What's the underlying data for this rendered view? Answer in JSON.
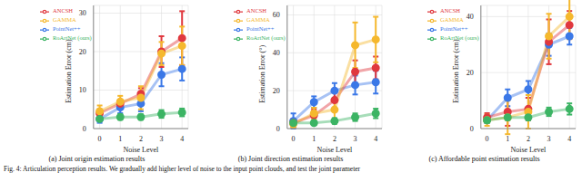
{
  "caption": "Fig. 4: Articulation perception results. We gradually add higher level of noise to the input point clouds, and test the joint parameter",
  "chart_data": [
    {
      "type": "line",
      "title": "(a) Joint origin estimation results",
      "x_label": "Noise Level",
      "y_label": "Estimation Error (cm)",
      "x": [
        0,
        1,
        2,
        3,
        4
      ],
      "xlim": [
        -0.3,
        4.3
      ],
      "xticks": [
        0,
        1,
        2,
        3,
        4
      ],
      "ylim": [
        0,
        32
      ],
      "yticks": [
        0,
        10,
        20,
        30
      ],
      "grid": true,
      "legend": "upper left",
      "marker": "circle",
      "series": [
        {
          "name": "PointNet++",
          "color": "#3b78e7",
          "values": [
            2.5,
            5.5,
            6.5,
            14,
            15.5
          ],
          "errors": [
            1,
            1.5,
            2,
            3,
            3
          ]
        },
        {
          "name": "ANCSH",
          "color": "#e0383e",
          "values": [
            4,
            6.5,
            9,
            20,
            23.5
          ],
          "errors": [
            1,
            1,
            1.5,
            4,
            7
          ]
        },
        {
          "name": "GAMMA",
          "color": "#f5b82e",
          "values": [
            4.5,
            7,
            8,
            19.5,
            21.5
          ],
          "errors": [
            1.5,
            1.5,
            3,
            3,
            5
          ]
        },
        {
          "name": "RoArtNet (ours)",
          "color": "#3cb464",
          "values": [
            2.5,
            3,
            3,
            3.8,
            4.2
          ],
          "errors": [
            0.5,
            0.7,
            0.7,
            1,
            1
          ]
        }
      ]
    },
    {
      "type": "line",
      "title": "(b) Joint direction estimation results",
      "x_label": "Noise Level",
      "y_label": "Estimation Error (°)",
      "x": [
        0,
        1,
        2,
        3,
        4
      ],
      "xlim": [
        -0.3,
        4.3
      ],
      "xticks": [
        0,
        1,
        2,
        3,
        4
      ],
      "ylim": [
        0,
        65
      ],
      "yticks": [
        0,
        20,
        40,
        60
      ],
      "grid": true,
      "legend": "upper left",
      "marker": "circle",
      "series": [
        {
          "name": "PointNet++",
          "color": "#3b78e7",
          "values": [
            4,
            14,
            20,
            23,
            24.5
          ],
          "errors": [
            4,
            3,
            4,
            5,
            6
          ]
        },
        {
          "name": "ANCSH",
          "color": "#e0383e",
          "values": [
            3,
            7,
            15,
            30,
            32
          ],
          "errors": [
            2,
            3,
            4,
            6,
            6
          ]
        },
        {
          "name": "GAMMA",
          "color": "#f5b82e",
          "values": [
            2.5,
            8,
            10,
            44,
            47
          ],
          "errors": [
            2,
            3,
            5,
            12,
            12
          ]
        },
        {
          "name": "RoArtNet (ours)",
          "color": "#3cb464",
          "values": [
            3,
            3,
            4,
            6,
            8
          ],
          "errors": [
            1,
            1,
            1.5,
            2,
            2.5
          ]
        }
      ]
    },
    {
      "type": "line",
      "title": "(c) Affordable point estimation results",
      "x_label": "Noise Level",
      "y_label": "Estimation Error (cm)",
      "x": [
        0,
        1,
        2,
        3,
        4
      ],
      "xlim": [
        -0.3,
        4.3
      ],
      "xticks": [
        0,
        1,
        2,
        3,
        4
      ],
      "ylim": [
        0,
        44
      ],
      "yticks": [
        0,
        20,
        40
      ],
      "grid": true,
      "legend": "upper left",
      "marker": "circle",
      "series": [
        {
          "name": "PointNet++",
          "color": "#3b78e7",
          "values": [
            3,
            11,
            14,
            30,
            33
          ],
          "errors": [
            1,
            3,
            3,
            4,
            3
          ]
        },
        {
          "name": "ANCSH",
          "color": "#e0383e",
          "values": [
            4,
            6,
            7,
            31,
            37
          ],
          "errors": [
            1.5,
            5,
            4,
            8,
            5
          ]
        },
        {
          "name": "GAMMA",
          "color": "#f5b82e",
          "values": [
            3,
            4,
            6,
            33,
            40
          ],
          "errors": [
            2,
            6,
            6,
            8,
            8
          ]
        },
        {
          "name": "RoArtNet (ours)",
          "color": "#3cb464",
          "values": [
            3,
            4,
            4,
            6,
            7
          ],
          "errors": [
            1,
            1,
            1,
            1.5,
            2
          ]
        }
      ]
    }
  ]
}
